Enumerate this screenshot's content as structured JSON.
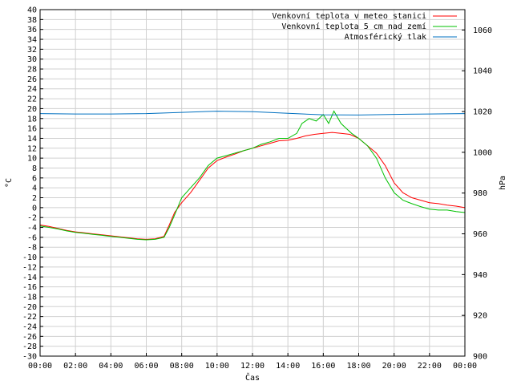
{
  "chart_data": {
    "type": "line",
    "xlabel": "Čas",
    "ylabel_left": "°C",
    "ylabel_right": "hPa",
    "ylim_left": [
      -30,
      40
    ],
    "ylim_right": [
      900,
      1070
    ],
    "x_range_hours": [
      0,
      24
    ],
    "x_tick_labels": [
      "00:00",
      "02:00",
      "04:00",
      "06:00",
      "08:00",
      "10:00",
      "12:00",
      "14:00",
      "16:00",
      "18:00",
      "20:00",
      "22:00",
      "00:00"
    ],
    "y_left_ticks": [
      -30,
      -28,
      -26,
      -24,
      -22,
      -20,
      -18,
      -16,
      -14,
      -12,
      -10,
      -8,
      -6,
      -4,
      -2,
      0,
      2,
      4,
      6,
      8,
      10,
      12,
      14,
      16,
      18,
      20,
      22,
      24,
      26,
      28,
      30,
      32,
      34,
      36,
      38,
      40
    ],
    "y_right_ticks": [
      900,
      920,
      940,
      960,
      980,
      1000,
      1020,
      1040,
      1060
    ],
    "grid": true,
    "legend_position": "top-right",
    "series": [
      {
        "name": "Venkovní teplota v meteo stanici",
        "color": "#ff0000",
        "axis": "left",
        "points": [
          [
            0,
            -3.5
          ],
          [
            0.5,
            -3.8
          ],
          [
            1,
            -4.2
          ],
          [
            1.5,
            -4.6
          ],
          [
            2,
            -4.9
          ],
          [
            2.5,
            -5.1
          ],
          [
            3,
            -5.3
          ],
          [
            3.5,
            -5.5
          ],
          [
            4,
            -5.7
          ],
          [
            4.5,
            -5.9
          ],
          [
            5,
            -6.1
          ],
          [
            5.5,
            -6.3
          ],
          [
            6,
            -6.4
          ],
          [
            6.5,
            -6.3
          ],
          [
            7,
            -5.8
          ],
          [
            7.3,
            -3.5
          ],
          [
            7.6,
            -1
          ],
          [
            8,
            1
          ],
          [
            8.5,
            3
          ],
          [
            9,
            5.5
          ],
          [
            9.5,
            8
          ],
          [
            10,
            9.5
          ],
          [
            10.5,
            10.2
          ],
          [
            11,
            10.8
          ],
          [
            11.5,
            11.5
          ],
          [
            12,
            12
          ],
          [
            12.5,
            12.5
          ],
          [
            13,
            13
          ],
          [
            13.5,
            13.5
          ],
          [
            14,
            13.6
          ],
          [
            14.5,
            14
          ],
          [
            15,
            14.5
          ],
          [
            15.5,
            14.8
          ],
          [
            16,
            15
          ],
          [
            16.5,
            15.2
          ],
          [
            17,
            15
          ],
          [
            17.5,
            14.8
          ],
          [
            18,
            14
          ],
          [
            18.5,
            12.5
          ],
          [
            19,
            11
          ],
          [
            19.5,
            8.5
          ],
          [
            20,
            5
          ],
          [
            20.5,
            3
          ],
          [
            21,
            2
          ],
          [
            21.5,
            1.5
          ],
          [
            22,
            1
          ],
          [
            22.5,
            0.8
          ],
          [
            23,
            0.5
          ],
          [
            23.5,
            0.3
          ],
          [
            24,
            0
          ]
        ]
      },
      {
        "name": "Venkovní teplota 5 cm nad zemí",
        "color": "#00c000",
        "axis": "left",
        "points": [
          [
            0,
            -3.7
          ],
          [
            0.5,
            -4
          ],
          [
            1,
            -4.3
          ],
          [
            1.5,
            -4.7
          ],
          [
            2,
            -5
          ],
          [
            2.5,
            -5.2
          ],
          [
            3,
            -5.4
          ],
          [
            3.5,
            -5.6
          ],
          [
            4,
            -5.8
          ],
          [
            4.5,
            -6
          ],
          [
            5,
            -6.2
          ],
          [
            5.5,
            -6.4
          ],
          [
            6,
            -6.5
          ],
          [
            6.5,
            -6.4
          ],
          [
            7,
            -6
          ],
          [
            7.3,
            -4
          ],
          [
            7.6,
            -1.5
          ],
          [
            8,
            2
          ],
          [
            8.5,
            4
          ],
          [
            9,
            6
          ],
          [
            9.5,
            8.5
          ],
          [
            10,
            10
          ],
          [
            10.5,
            10.5
          ],
          [
            11,
            11
          ],
          [
            11.5,
            11.5
          ],
          [
            12,
            12
          ],
          [
            12.5,
            12.8
          ],
          [
            13,
            13.3
          ],
          [
            13.5,
            14
          ],
          [
            14,
            14
          ],
          [
            14.5,
            15
          ],
          [
            14.8,
            17
          ],
          [
            15.2,
            18
          ],
          [
            15.6,
            17.5
          ],
          [
            16,
            18.8
          ],
          [
            16.3,
            17
          ],
          [
            16.6,
            19.5
          ],
          [
            17,
            17
          ],
          [
            17.3,
            16
          ],
          [
            17.6,
            15
          ],
          [
            18,
            14
          ],
          [
            18.5,
            12.5
          ],
          [
            19,
            10
          ],
          [
            19.5,
            6
          ],
          [
            20,
            3
          ],
          [
            20.5,
            1.5
          ],
          [
            21,
            0.8
          ],
          [
            21.5,
            0.2
          ],
          [
            22,
            -0.3
          ],
          [
            22.5,
            -0.5
          ],
          [
            23,
            -0.5
          ],
          [
            23.5,
            -0.8
          ],
          [
            24,
            -1
          ]
        ]
      },
      {
        "name": "Atmosférický tlak",
        "color": "#0070c0",
        "axis": "right",
        "points": [
          [
            0,
            1019
          ],
          [
            2,
            1018.8
          ],
          [
            4,
            1018.8
          ],
          [
            6,
            1019
          ],
          [
            8,
            1019.6
          ],
          [
            10,
            1020.2
          ],
          [
            12,
            1019.9
          ],
          [
            14,
            1019.1
          ],
          [
            16,
            1018.4
          ],
          [
            18,
            1018.3
          ],
          [
            20,
            1018.6
          ],
          [
            22,
            1018.8
          ],
          [
            24,
            1019
          ]
        ]
      }
    ]
  }
}
